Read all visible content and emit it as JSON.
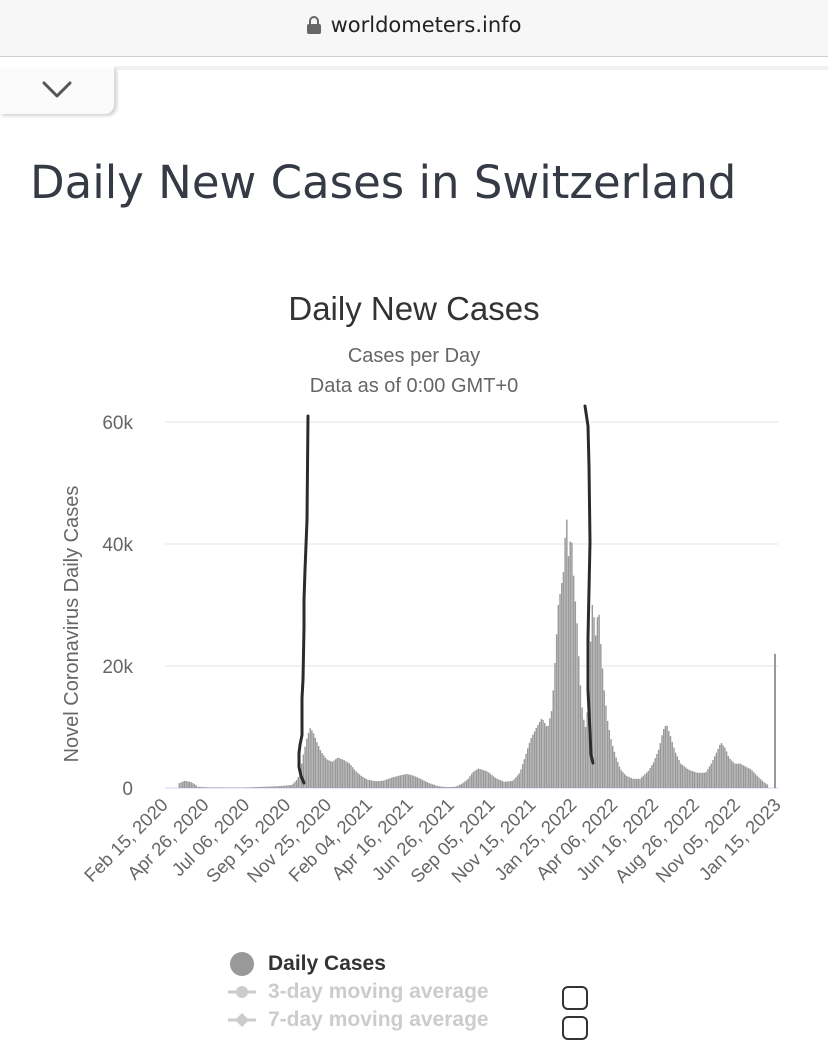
{
  "browser": {
    "url": "worldometers.info"
  },
  "page": {
    "title": "Daily New Cases in Switzerland"
  },
  "chart_data": {
    "type": "bar",
    "title": "Daily New Cases",
    "subtitle_lines": [
      "Cases per Day",
      "Data as of 0:00 GMT+0"
    ],
    "ylabel": "Novel Coronavirus Daily Cases",
    "xlabel": "",
    "ylim": [
      0,
      60000
    ],
    "yticks": [
      0,
      20000,
      40000,
      60000
    ],
    "ytick_labels": [
      "0",
      "20k",
      "40k",
      "60k"
    ],
    "x_range": [
      "2020-02-15",
      "2023-02-01"
    ],
    "xtick_labels": [
      "Feb 15, 2020",
      "Apr 26, 2020",
      "Jul 06, 2020",
      "Sep 15, 2020",
      "Nov 25, 2020",
      "Feb 04, 2021",
      "Apr 16, 2021",
      "Jun 26, 2021",
      "Sep 05, 2021",
      "Nov 15, 2021",
      "Jan 25, 2022",
      "Apr 06, 2022",
      "Jun 16, 2022",
      "Aug 26, 2022",
      "Nov 05, 2022",
      "Jan 15, 2023"
    ],
    "grid": true,
    "bar_color": "#999999",
    "series": [
      {
        "name": "Daily Cases",
        "points": [
          [
            "2020-03-10",
            800
          ],
          [
            "2020-03-20",
            1200
          ],
          [
            "2020-03-30",
            1000
          ],
          [
            "2020-04-05",
            700
          ],
          [
            "2020-04-12",
            200
          ],
          [
            "2020-05-01",
            100
          ],
          [
            "2020-07-01",
            80
          ],
          [
            "2020-09-01",
            300
          ],
          [
            "2020-09-25",
            500
          ],
          [
            "2020-10-05",
            1500
          ],
          [
            "2020-10-10",
            3000
          ],
          [
            "2020-10-15",
            5500
          ],
          [
            "2020-10-22",
            8500
          ],
          [
            "2020-10-27",
            9800
          ],
          [
            "2020-11-01",
            9200
          ],
          [
            "2020-11-08",
            7500
          ],
          [
            "2020-11-15",
            6000
          ],
          [
            "2020-11-25",
            4700
          ],
          [
            "2020-12-05",
            4300
          ],
          [
            "2020-12-15",
            5000
          ],
          [
            "2020-12-25",
            4600
          ],
          [
            "2021-01-05",
            4000
          ],
          [
            "2021-01-15",
            2800
          ],
          [
            "2021-01-25",
            2000
          ],
          [
            "2021-02-04",
            1400
          ],
          [
            "2021-02-20",
            1100
          ],
          [
            "2021-03-05",
            1200
          ],
          [
            "2021-03-20",
            1700
          ],
          [
            "2021-04-05",
            2100
          ],
          [
            "2021-04-16",
            2300
          ],
          [
            "2021-04-28",
            2000
          ],
          [
            "2021-05-10",
            1500
          ],
          [
            "2021-05-25",
            800
          ],
          [
            "2021-06-10",
            300
          ],
          [
            "2021-06-26",
            150
          ],
          [
            "2021-07-10",
            200
          ],
          [
            "2021-07-20",
            600
          ],
          [
            "2021-08-01",
            1400
          ],
          [
            "2021-08-10",
            2600
          ],
          [
            "2021-08-20",
            3200
          ],
          [
            "2021-09-05",
            2700
          ],
          [
            "2021-09-20",
            1600
          ],
          [
            "2021-10-05",
            1000
          ],
          [
            "2021-10-20",
            1200
          ],
          [
            "2021-11-01",
            2500
          ],
          [
            "2021-11-10",
            5000
          ],
          [
            "2021-11-20",
            8000
          ],
          [
            "2021-12-01",
            10000
          ],
          [
            "2021-12-10",
            11500
          ],
          [
            "2021-12-20",
            9800
          ],
          [
            "2021-12-28",
            13000
          ],
          [
            "2022-01-03",
            22000
          ],
          [
            "2022-01-08",
            30000
          ],
          [
            "2022-01-13",
            33000
          ],
          [
            "2022-01-18",
            36000
          ],
          [
            "2022-01-22",
            46000
          ],
          [
            "2022-01-26",
            38000
          ],
          [
            "2022-01-31",
            42000
          ],
          [
            "2022-02-05",
            33000
          ],
          [
            "2022-02-10",
            27000
          ],
          [
            "2022-02-15",
            18000
          ],
          [
            "2022-02-20",
            12000
          ],
          [
            "2022-02-25",
            10000
          ],
          [
            "2022-03-02",
            14000
          ],
          [
            "2022-03-06",
            24000
          ],
          [
            "2022-03-10",
            32000
          ],
          [
            "2022-03-14",
            24000
          ],
          [
            "2022-03-20",
            30000
          ],
          [
            "2022-03-25",
            22000
          ],
          [
            "2022-03-30",
            16000
          ],
          [
            "2022-04-05",
            11000
          ],
          [
            "2022-04-12",
            7500
          ],
          [
            "2022-04-20",
            5000
          ],
          [
            "2022-04-28",
            3000
          ],
          [
            "2022-05-08",
            2000
          ],
          [
            "2022-05-20",
            1500
          ],
          [
            "2022-06-01",
            1500
          ],
          [
            "2022-06-16",
            2800
          ],
          [
            "2022-06-25",
            4200
          ],
          [
            "2022-07-05",
            6500
          ],
          [
            "2022-07-12",
            9500
          ],
          [
            "2022-07-18",
            10500
          ],
          [
            "2022-07-25",
            8500
          ],
          [
            "2022-08-02",
            6000
          ],
          [
            "2022-08-12",
            4000
          ],
          [
            "2022-08-26",
            3000
          ],
          [
            "2022-09-10",
            2500
          ],
          [
            "2022-09-25",
            2500
          ],
          [
            "2022-10-05",
            4000
          ],
          [
            "2022-10-15",
            6000
          ],
          [
            "2022-10-22",
            7500
          ],
          [
            "2022-10-30",
            6500
          ],
          [
            "2022-11-05",
            5000
          ],
          [
            "2022-11-15",
            4000
          ],
          [
            "2022-11-25",
            4000
          ],
          [
            "2022-12-05",
            3500
          ],
          [
            "2022-12-15",
            3000
          ],
          [
            "2022-12-25",
            2000
          ],
          [
            "2023-01-05",
            1000
          ],
          [
            "2023-01-15",
            400
          ],
          [
            "2023-01-25",
            300
          ],
          [
            "2023-02-01",
            22000
          ]
        ]
      }
    ],
    "legend": [
      {
        "label": "Daily Cases",
        "color": "#999999",
        "enabled": true
      },
      {
        "label": "3-day moving average",
        "color": "#cccccc",
        "enabled": false
      },
      {
        "label": "7-day moving average",
        "color": "#cccccc",
        "enabled": false
      }
    ]
  }
}
